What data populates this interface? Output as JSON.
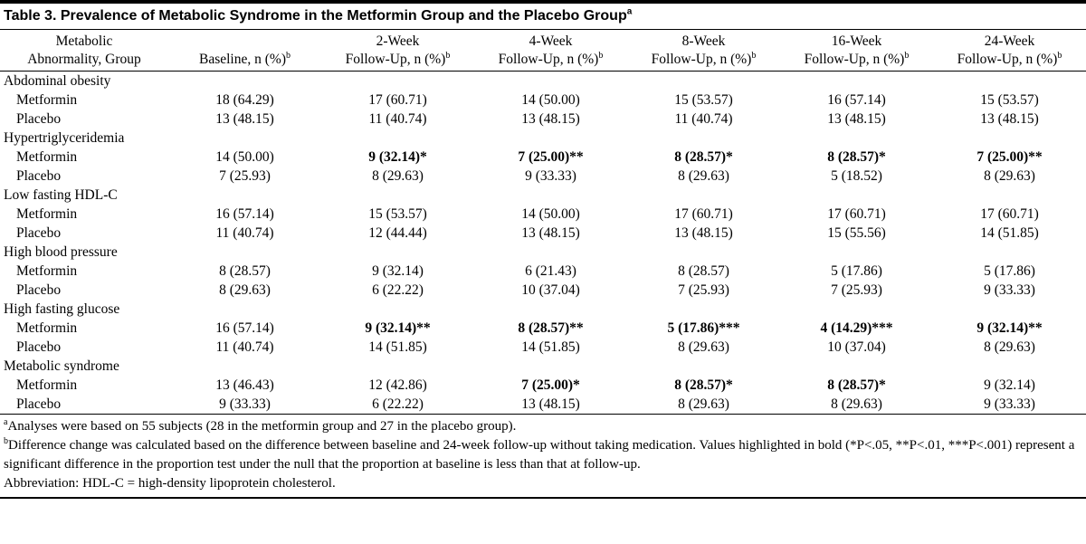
{
  "table": {
    "title": "Table 3. Prevalence of Metabolic Syndrome in the Metformin Group and the Placebo Group",
    "title_sup": "a",
    "col_headers": [
      {
        "line1": "Metabolic",
        "line2": "Abnormality, Group",
        "sup": ""
      },
      {
        "line1": "",
        "line2": "Baseline, n (%)",
        "sup": "b"
      },
      {
        "line1": "2-Week",
        "line2": "Follow-Up, n (%)",
        "sup": "b"
      },
      {
        "line1": "4-Week",
        "line2": "Follow-Up, n (%)",
        "sup": "b"
      },
      {
        "line1": "8-Week",
        "line2": "Follow-Up, n (%)",
        "sup": "b"
      },
      {
        "line1": "16-Week",
        "line2": "Follow-Up, n (%)",
        "sup": "b"
      },
      {
        "line1": "24-Week",
        "line2": "Follow-Up, n (%)",
        "sup": "b"
      }
    ],
    "sections": [
      {
        "label": "Abdominal obesity",
        "rows": [
          {
            "group": "Metformin",
            "cells": [
              {
                "t": "18 (64.29)",
                "b": false
              },
              {
                "t": "17 (60.71)",
                "b": false
              },
              {
                "t": "14 (50.00)",
                "b": false
              },
              {
                "t": "15 (53.57)",
                "b": false
              },
              {
                "t": "16 (57.14)",
                "b": false
              },
              {
                "t": "15 (53.57)",
                "b": false
              }
            ]
          },
          {
            "group": "Placebo",
            "cells": [
              {
                "t": "13 (48.15)",
                "b": false
              },
              {
                "t": "11 (40.74)",
                "b": false
              },
              {
                "t": "13 (48.15)",
                "b": false
              },
              {
                "t": "11 (40.74)",
                "b": false
              },
              {
                "t": "13 (48.15)",
                "b": false
              },
              {
                "t": "13 (48.15)",
                "b": false
              }
            ]
          }
        ]
      },
      {
        "label": "Hypertriglyceridemia",
        "rows": [
          {
            "group": "Metformin",
            "cells": [
              {
                "t": "14 (50.00)",
                "b": false
              },
              {
                "t": "9 (32.14)*",
                "b": true
              },
              {
                "t": "7 (25.00)**",
                "b": true
              },
              {
                "t": "8 (28.57)*",
                "b": true
              },
              {
                "t": "8 (28.57)*",
                "b": true
              },
              {
                "t": "7 (25.00)**",
                "b": true
              }
            ]
          },
          {
            "group": "Placebo",
            "cells": [
              {
                "t": "7 (25.93)",
                "b": false
              },
              {
                "t": "8 (29.63)",
                "b": false
              },
              {
                "t": "9 (33.33)",
                "b": false
              },
              {
                "t": "8 (29.63)",
                "b": false
              },
              {
                "t": "5 (18.52)",
                "b": false
              },
              {
                "t": "8 (29.63)",
                "b": false
              }
            ]
          }
        ]
      },
      {
        "label": "Low fasting HDL-C",
        "rows": [
          {
            "group": "Metformin",
            "cells": [
              {
                "t": "16 (57.14)",
                "b": false
              },
              {
                "t": "15 (53.57)",
                "b": false
              },
              {
                "t": "14 (50.00)",
                "b": false
              },
              {
                "t": "17 (60.71)",
                "b": false
              },
              {
                "t": "17 (60.71)",
                "b": false
              },
              {
                "t": "17 (60.71)",
                "b": false
              }
            ]
          },
          {
            "group": "Placebo",
            "cells": [
              {
                "t": "11 (40.74)",
                "b": false
              },
              {
                "t": "12 (44.44)",
                "b": false
              },
              {
                "t": "13 (48.15)",
                "b": false
              },
              {
                "t": "13 (48.15)",
                "b": false
              },
              {
                "t": "15 (55.56)",
                "b": false
              },
              {
                "t": "14 (51.85)",
                "b": false
              }
            ]
          }
        ]
      },
      {
        "label": "High blood pressure",
        "rows": [
          {
            "group": "Metformin",
            "cells": [
              {
                "t": "8 (28.57)",
                "b": false
              },
              {
                "t": "9 (32.14)",
                "b": false
              },
              {
                "t": "6 (21.43)",
                "b": false
              },
              {
                "t": "8 (28.57)",
                "b": false
              },
              {
                "t": "5 (17.86)",
                "b": false
              },
              {
                "t": "5 (17.86)",
                "b": false
              }
            ]
          },
          {
            "group": "Placebo",
            "cells": [
              {
                "t": "8 (29.63)",
                "b": false
              },
              {
                "t": "6 (22.22)",
                "b": false
              },
              {
                "t": "10 (37.04)",
                "b": false
              },
              {
                "t": "7 (25.93)",
                "b": false
              },
              {
                "t": "7 (25.93)",
                "b": false
              },
              {
                "t": "9 (33.33)",
                "b": false
              }
            ]
          }
        ]
      },
      {
        "label": "High fasting glucose",
        "rows": [
          {
            "group": "Metformin",
            "cells": [
              {
                "t": "16 (57.14)",
                "b": false
              },
              {
                "t": "9 (32.14)**",
                "b": true
              },
              {
                "t": "8 (28.57)**",
                "b": true
              },
              {
                "t": "5 (17.86)***",
                "b": true
              },
              {
                "t": "4 (14.29)***",
                "b": true
              },
              {
                "t": "9 (32.14)**",
                "b": true
              }
            ]
          },
          {
            "group": "Placebo",
            "cells": [
              {
                "t": "11 (40.74)",
                "b": false
              },
              {
                "t": "14 (51.85)",
                "b": false
              },
              {
                "t": "14 (51.85)",
                "b": false
              },
              {
                "t": "8 (29.63)",
                "b": false
              },
              {
                "t": "10 (37.04)",
                "b": false
              },
              {
                "t": "8 (29.63)",
                "b": false
              }
            ]
          }
        ]
      },
      {
        "label": "Metabolic syndrome",
        "rows": [
          {
            "group": "Metformin",
            "cells": [
              {
                "t": "13 (46.43)",
                "b": false
              },
              {
                "t": "12 (42.86)",
                "b": false
              },
              {
                "t": "7 (25.00)*",
                "b": true
              },
              {
                "t": "8 (28.57)*",
                "b": true
              },
              {
                "t": "8 (28.57)*",
                "b": true
              },
              {
                "t": "9 (32.14)",
                "b": false
              }
            ]
          },
          {
            "group": "Placebo",
            "cells": [
              {
                "t": "9 (33.33)",
                "b": false
              },
              {
                "t": "6 (22.22)",
                "b": false
              },
              {
                "t": "13 (48.15)",
                "b": false
              },
              {
                "t": "8 (29.63)",
                "b": false
              },
              {
                "t": "8 (29.63)",
                "b": false
              },
              {
                "t": "9 (33.33)",
                "b": false
              }
            ]
          }
        ]
      }
    ],
    "footnotes": [
      {
        "sup": "a",
        "text": "Analyses were based on 55 subjects (28 in the metformin group and 27 in the placebo group)."
      },
      {
        "sup": "b",
        "text": "Difference change was calculated based on the difference between baseline and 24-week follow-up without taking medication. Values highlighted in bold (*P<.05, **P<.01, ***P<.001) represent a significant difference in the proportion test under the null that the proportion at baseline is less than that at follow-up."
      },
      {
        "sup": "",
        "text": "Abbreviation: HDL-C = high-density lipoprotein cholesterol."
      }
    ]
  }
}
